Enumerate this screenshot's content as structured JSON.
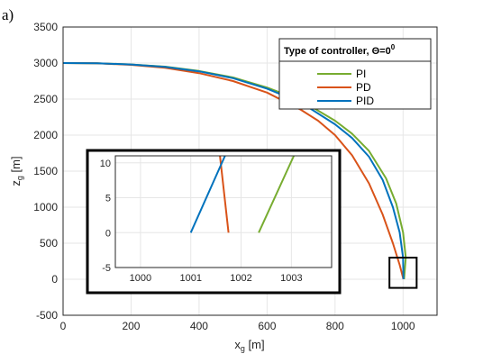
{
  "panel_label": "a)",
  "chart_data": {
    "type": "line",
    "title": "",
    "xlabel": "x",
    "xlabel_sub": "g",
    "xlabel_unit": " [m]",
    "ylabel": "z",
    "ylabel_sub": "g",
    "ylabel_unit": " [m]",
    "xlim": [
      0,
      1100
    ],
    "ylim": [
      -500,
      3500
    ],
    "xticks": [
      0,
      200,
      400,
      600,
      800,
      1000
    ],
    "yticks": [
      -500,
      0,
      500,
      1000,
      1500,
      2000,
      2500,
      3000,
      3500
    ],
    "grid": true,
    "legend": {
      "title": "Type of controller, Θ=0",
      "title_sup": "0",
      "placement": "top-right"
    },
    "series": [
      {
        "name": "PI",
        "color": "#77AC30",
        "x": [
          0,
          100,
          200,
          300,
          400,
          500,
          600,
          700,
          800,
          850,
          900,
          950,
          980,
          1000,
          1008,
          1003
        ],
        "y": [
          3000,
          2997,
          2980,
          2950,
          2890,
          2800,
          2660,
          2480,
          2200,
          2020,
          1780,
          1400,
          1050,
          650,
          300,
          0
        ]
      },
      {
        "name": "PD",
        "color": "#D95319",
        "x": [
          0,
          100,
          200,
          300,
          400,
          500,
          600,
          700,
          750,
          800,
          850,
          900,
          940,
          970,
          990,
          1001
        ],
        "y": [
          3000,
          2996,
          2975,
          2935,
          2860,
          2750,
          2590,
          2350,
          2200,
          2000,
          1720,
          1330,
          900,
          500,
          200,
          0
        ]
      },
      {
        "name": "PID",
        "color": "#0072BD",
        "x": [
          0,
          100,
          200,
          300,
          400,
          500,
          600,
          700,
          800,
          850,
          900,
          940,
          970,
          990,
          1000,
          1001
        ],
        "y": [
          3000,
          2997,
          2980,
          2948,
          2885,
          2790,
          2645,
          2450,
          2150,
          1960,
          1700,
          1380,
          1000,
          650,
          300,
          0
        ]
      }
    ],
    "inset": {
      "xlim": [
        999.5,
        1003.8
      ],
      "ylim": [
        -5,
        11
      ],
      "xticks": [
        1000,
        1001,
        1002,
        1003
      ],
      "yticks": [
        -5,
        0,
        5,
        10
      ],
      "grid": true,
      "zoom_region": {
        "xlim": [
          960,
          1040
        ],
        "ylim": [
          -120,
          300
        ]
      },
      "series": [
        {
          "name": "PI",
          "color": "#77AC30",
          "x": [
            1002.35,
            1003.05
          ],
          "y": [
            0,
            11
          ]
        },
        {
          "name": "PD",
          "color": "#D95319",
          "x": [
            1001.75,
            1001.58
          ],
          "y": [
            0,
            11
          ]
        },
        {
          "name": "PID",
          "color": "#0072BD",
          "x": [
            1001.0,
            1001.68
          ],
          "y": [
            0,
            11
          ]
        }
      ]
    }
  }
}
